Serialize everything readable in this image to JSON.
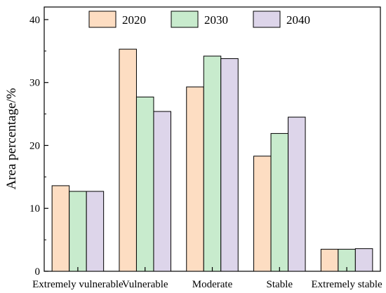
{
  "chart_data": {
    "type": "bar",
    "title": "",
    "xlabel": "",
    "ylabel": "Area percentage/%",
    "ylim": [
      0,
      42
    ],
    "yticks": [
      0,
      10,
      20,
      30,
      40
    ],
    "grid": false,
    "legend_position": "top",
    "categories": [
      "Extremely vulnerable",
      "Vulnerable",
      "Moderate",
      "Stable",
      "Extremely stable"
    ],
    "series": [
      {
        "name": "2020",
        "color": "#fdddc2",
        "values": [
          13.6,
          35.3,
          29.3,
          18.3,
          3.5
        ]
      },
      {
        "name": "2030",
        "color": "#c8ebcd",
        "values": [
          12.7,
          27.7,
          34.2,
          21.9,
          3.5
        ]
      },
      {
        "name": "2040",
        "color": "#ddd5ea",
        "values": [
          12.7,
          25.4,
          33.8,
          24.5,
          3.6
        ]
      }
    ]
  }
}
